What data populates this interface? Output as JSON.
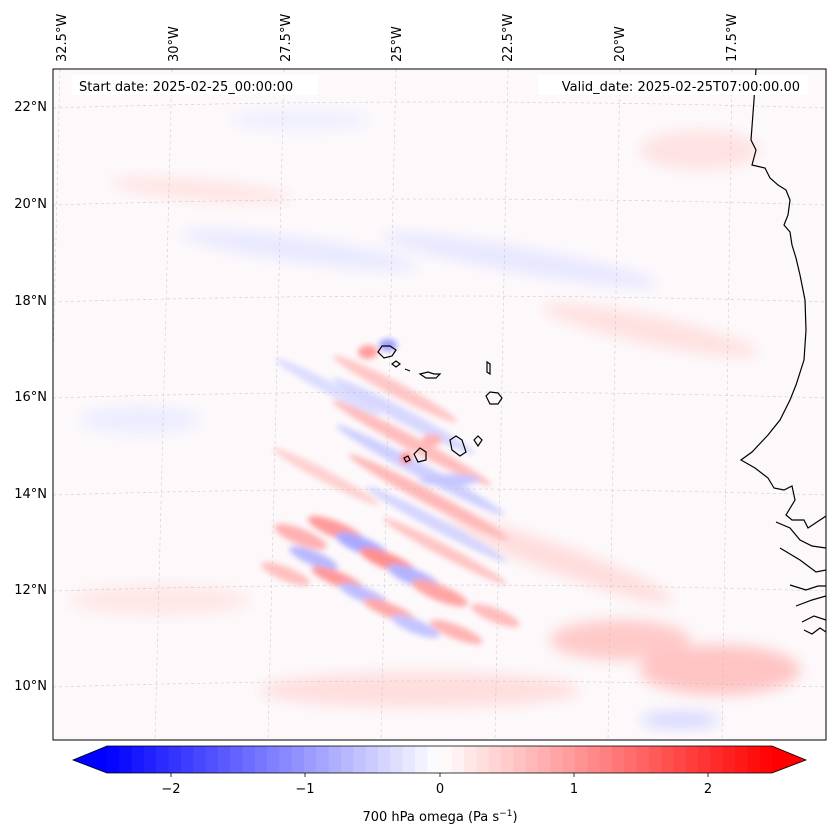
{
  "map": {
    "start_date": "Start date: 2025-02-25_00:00:00",
    "valid_date": "Valid_date: 2025-02-25T07:00:00.00",
    "lon_labels": [
      "32.5°W",
      "30°W",
      "27.5°W",
      "25°W",
      "22.5°W",
      "20°W",
      "17.5°W"
    ],
    "lat_labels": [
      "22°N",
      "20°N",
      "18°N",
      "16°N",
      "14°N",
      "12°N",
      "10°N"
    ],
    "field": "700 hPa omega",
    "colormap": "bwr"
  },
  "colorbar": {
    "label_prefix": "700 hPa omega (Pa s",
    "label_exp": "−1",
    "label_suffix": ")",
    "tick_labels": [
      "−2",
      "−1",
      "0",
      "1",
      "2"
    ],
    "range": [
      -2.7,
      2.7
    ],
    "colors": {
      "low": "#0000ff",
      "mid": "#ffffff",
      "high": "#ff0000"
    }
  }
}
